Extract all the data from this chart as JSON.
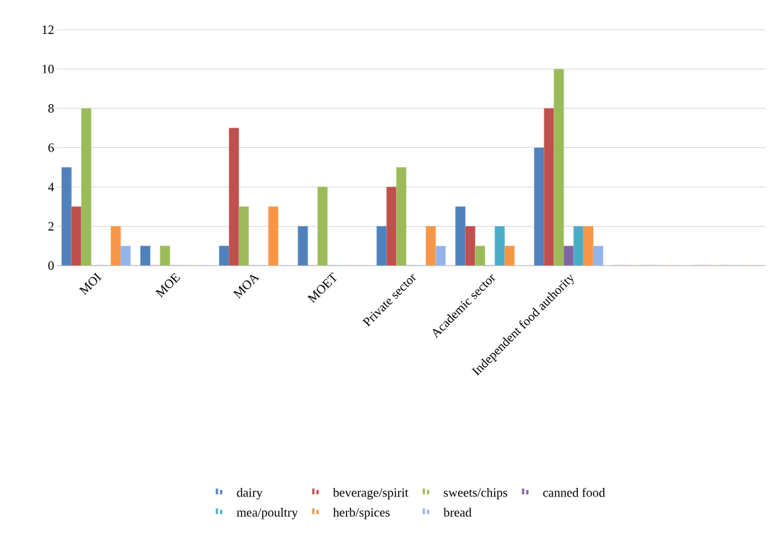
{
  "chart_data": {
    "type": "bar",
    "categories": [
      "MOI",
      "MOE",
      "MOA",
      "MOET",
      "Private sector",
      "Academic sector",
      "Independent food authority",
      null,
      null
    ],
    "series": [
      {
        "name": "dairy",
        "color": "#4f81bd",
        "values": [
          5,
          1,
          1,
          2,
          2,
          3,
          6,
          0,
          0
        ]
      },
      {
        "name": "beverage/spirit",
        "color": "#c0504d",
        "values": [
          3,
          0,
          7,
          0,
          4,
          2,
          8,
          0,
          0
        ]
      },
      {
        "name": "sweets/chips",
        "color": "#9bbb59",
        "values": [
          8,
          1,
          3,
          4,
          5,
          1,
          10,
          0,
          0
        ]
      },
      {
        "name": "canned food",
        "color": "#8064a2",
        "values": [
          0,
          0,
          0,
          0,
          0,
          0,
          1,
          0,
          0
        ]
      },
      {
        "name": "mea/poultry",
        "color": "#4bacc6",
        "values": [
          0,
          0,
          0,
          0,
          0,
          2,
          2,
          0,
          0
        ]
      },
      {
        "name": "herb/spices",
        "color": "#f79646",
        "values": [
          2,
          0,
          3,
          0,
          2,
          1,
          2,
          0,
          0
        ]
      },
      {
        "name": "bread",
        "color": "#95b3e6",
        "values": [
          1,
          0,
          0,
          0,
          1,
          0,
          1,
          0,
          0
        ]
      }
    ],
    "ylim": [
      0,
      12
    ],
    "yticks": [
      0,
      2,
      4,
      6,
      8,
      10,
      12
    ],
    "grid": "y",
    "legend": "bottom"
  }
}
